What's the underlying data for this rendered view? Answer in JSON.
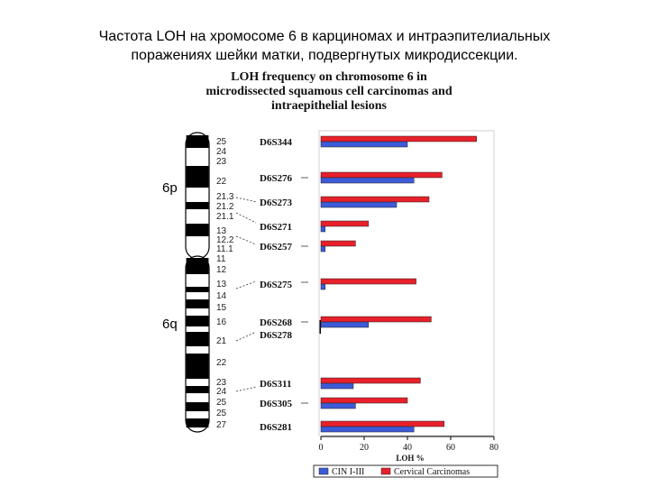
{
  "slide": {
    "title_line1": "Частота LOH на хромосоме 6 в карциномах и интраэпителиальных",
    "title_line2": "поражениях шейки матки, подвергнутых микродиссекции."
  },
  "chart_data": {
    "type": "bar",
    "orientation": "horizontal",
    "title_lines": [
      "LOH frequency on chromosome 6 in",
      "microdissected squamous cell carcinomas and",
      "intraepithelial lesions"
    ],
    "xlabel": "LOH %",
    "xlim": [
      0,
      80
    ],
    "xticks": [
      "0",
      "20",
      "40",
      "60",
      "80"
    ],
    "grid": false,
    "legend_position": "bottom",
    "categories": [
      "D6S344",
      "D6S276",
      "D6S273",
      "D6S271",
      "D6S257",
      "D6S275",
      "D6S268",
      "D6S278",
      "D6S311",
      "D6S305",
      "D6S281"
    ],
    "series": [
      {
        "name": "Cervical Carcinomas",
        "color": "#e8202a",
        "values": [
          72,
          56,
          50,
          22,
          16,
          44,
          51,
          null,
          46,
          40,
          57
        ]
      },
      {
        "name": "CIN I-III",
        "color": "#3d5bd8",
        "values": [
          40,
          43,
          35,
          2,
          2,
          2,
          22,
          null,
          15,
          16,
          43
        ]
      }
    ],
    "chromosome": {
      "arms": [
        "6p",
        "6q"
      ],
      "bands": [
        "25",
        "24",
        "23",
        "22",
        "21.3",
        "21.2",
        "21.1",
        "13",
        "12.2",
        "11.1",
        "11",
        "12",
        "13",
        "14",
        "15",
        "16",
        "21",
        "22",
        "23",
        "24",
        "25",
        "25",
        "27"
      ]
    }
  }
}
